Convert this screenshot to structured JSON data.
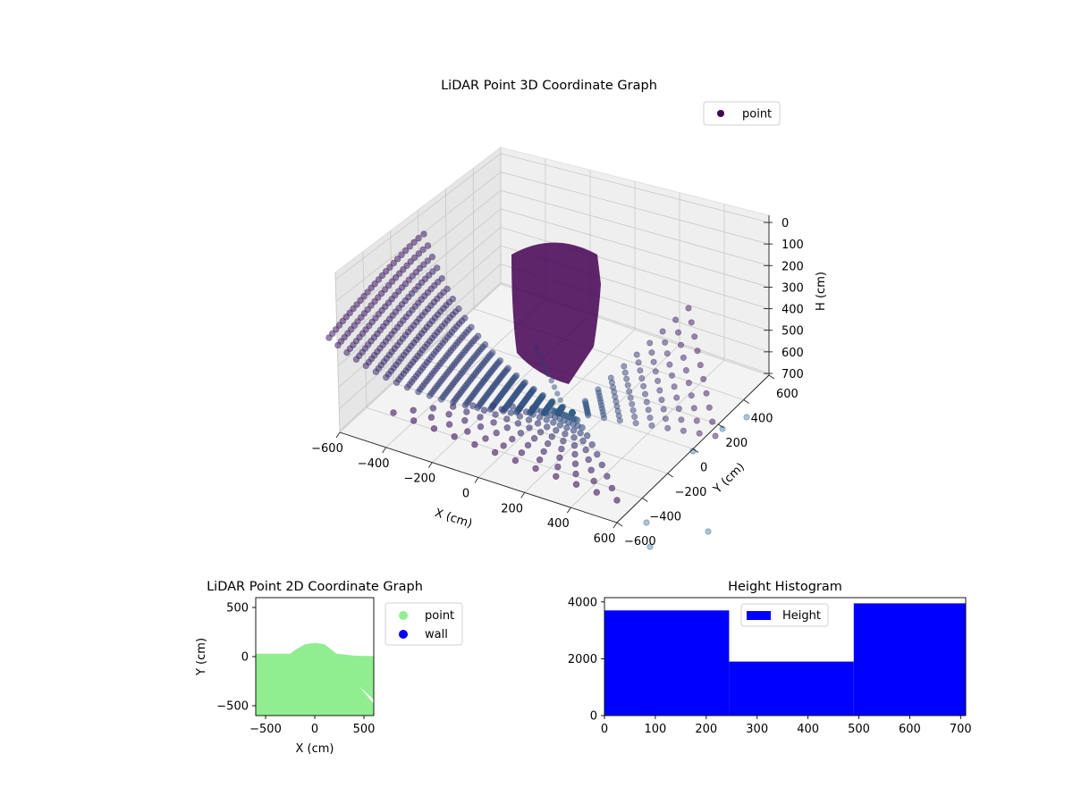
{
  "colors": {
    "viridis_dark": "#440154",
    "viridis_teal": "#31688e",
    "point_green": "#90ee90",
    "wall_blue": "#0000ff",
    "histogram_blue": "#0000ff"
  },
  "chart_data": [
    {
      "id": "lidar-3d",
      "type": "scatter",
      "projection": "3d",
      "title": "LiDAR Point 3D Coordinate Graph",
      "xlabel": "X (cm)",
      "ylabel": "Y (cm)",
      "zlabel": "H (cm)",
      "xlim": [
        -600,
        600
      ],
      "ylim": [
        -600,
        600
      ],
      "zlim": [
        0,
        700
      ],
      "zaxis_inverted": true,
      "xticks": [
        -600,
        -400,
        -200,
        0,
        200,
        400,
        600
      ],
      "yticks": [
        -600,
        -400,
        -200,
        0,
        200,
        400,
        600
      ],
      "zticks": [
        0,
        100,
        200,
        300,
        400,
        500,
        600,
        700
      ],
      "xtick_labels": [
        "−600",
        "−400",
        "−200",
        "0",
        "200",
        "400",
        "600"
      ],
      "ytick_labels": [
        "−600",
        "−400",
        "−200",
        "0",
        "200",
        "400",
        "600"
      ],
      "ztick_labels": [
        "0",
        "100",
        "200",
        "300",
        "400",
        "500",
        "600",
        "700"
      ],
      "colormap": "viridis",
      "legend": {
        "labels": [
          "point"
        ],
        "position": "upper-right"
      },
      "grid": true
    },
    {
      "id": "lidar-2d",
      "type": "scatter",
      "title": "LiDAR Point 2D Coordinate Graph",
      "xlabel": "X (cm)",
      "ylabel": "Y (cm)",
      "xlim": [
        -600,
        600
      ],
      "ylim": [
        -600,
        600
      ],
      "xticks": [
        -500,
        0,
        500
      ],
      "yticks": [
        -500,
        0,
        500
      ],
      "xtick_labels": [
        "−500",
        "0",
        "500"
      ],
      "ytick_labels": [
        "−500",
        "0",
        "500"
      ],
      "series": [
        {
          "name": "point",
          "color": "#90ee90",
          "region": "filled area for Y below about 30 cm, with a dome peaking near Y = 140 cm around X = 0"
        },
        {
          "name": "wall",
          "color": "#0000ff"
        }
      ],
      "legend": {
        "position": "outside-right"
      }
    },
    {
      "id": "height-histogram",
      "type": "bar",
      "title": "Height Histogram",
      "xlim": [
        0,
        710
      ],
      "ylim": [
        0,
        4150
      ],
      "xticks": [
        0,
        100,
        200,
        300,
        400,
        500,
        600,
        700
      ],
      "yticks": [
        0,
        2000,
        4000
      ],
      "xtick_labels": [
        "0",
        "100",
        "200",
        "300",
        "400",
        "500",
        "600",
        "700"
      ],
      "ytick_labels": [
        "0",
        "2000",
        "4000"
      ],
      "bins": [
        {
          "start": 0,
          "end": 245,
          "count": 3700
        },
        {
          "start": 245,
          "end": 490,
          "count": 1900
        },
        {
          "start": 490,
          "end": 710,
          "count": 3950
        }
      ],
      "series": [
        {
          "name": "Height",
          "color": "#0000ff"
        }
      ],
      "legend": {
        "position": "upper-center"
      }
    }
  ]
}
